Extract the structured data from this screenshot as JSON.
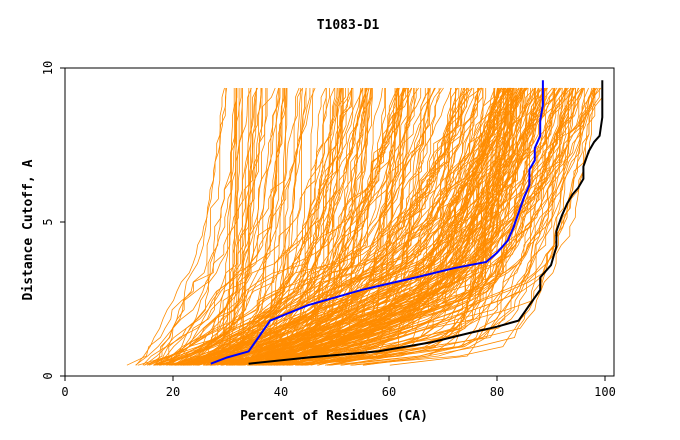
{
  "chart_data": {
    "type": "line",
    "title": "T1083-D1",
    "xlabel": "Percent of Residues (CA)",
    "ylabel": "Distance Cutoff, A",
    "xlim": [
      0,
      100
    ],
    "ylim": [
      0,
      10
    ],
    "xticks": [
      "0",
      "20",
      "40",
      "60",
      "80",
      "100"
    ],
    "yticks": [
      "0",
      "5",
      "10"
    ],
    "colors": {
      "models": "#ff8c00",
      "highlight_blue": "#0000ff",
      "highlight_black": "#000000"
    },
    "grid": false,
    "legend": "none",
    "series": [
      {
        "color": "#0000ff",
        "x": [
          27,
          30,
          34,
          36,
          38,
          45,
          55,
          65,
          72,
          78,
          80,
          82,
          83,
          84,
          85,
          86,
          86,
          87,
          87,
          88,
          88,
          88.5,
          88.5
        ],
        "y": [
          0.4,
          0.6,
          0.8,
          1.3,
          1.8,
          2.3,
          2.8,
          3.2,
          3.5,
          3.7,
          4.0,
          4.4,
          4.8,
          5.3,
          5.8,
          6.2,
          6.7,
          7.0,
          7.4,
          7.8,
          8.3,
          8.8,
          9.6
        ]
      },
      {
        "color": "#000000",
        "x": [
          34,
          45,
          58,
          68,
          75,
          80,
          84,
          86,
          88,
          88,
          90,
          91,
          91,
          92,
          93,
          94,
          95,
          96,
          96,
          97,
          98,
          99,
          99.5,
          99.5
        ],
        "y": [
          0.4,
          0.6,
          0.8,
          1.1,
          1.4,
          1.6,
          1.8,
          2.3,
          2.8,
          3.2,
          3.6,
          4.2,
          4.7,
          5.2,
          5.6,
          5.9,
          6.1,
          6.4,
          6.8,
          7.3,
          7.6,
          7.8,
          8.4,
          9.6
        ]
      }
    ]
  }
}
